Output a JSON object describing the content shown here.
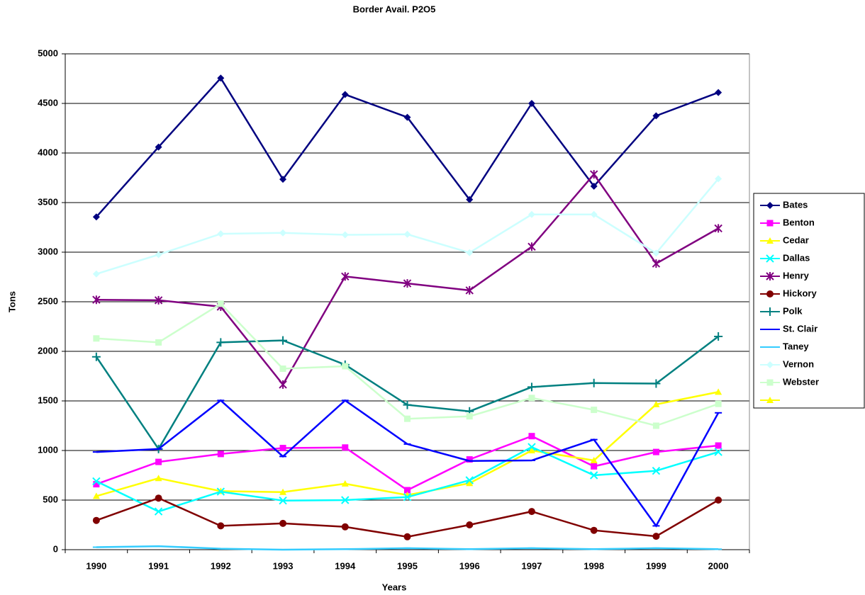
{
  "chart_data": {
    "type": "line",
    "title": "Border Avail. P2O5",
    "x_label": "Years",
    "y_label": "Tons",
    "categories": [
      "1990",
      "1991",
      "1992",
      "1993",
      "1994",
      "1995",
      "1996",
      "1997",
      "1998",
      "1999",
      "2000"
    ],
    "ylim": [
      0,
      5000
    ],
    "yticks": [
      0,
      500,
      1000,
      1500,
      2000,
      2500,
      3000,
      3500,
      4000,
      4500,
      5000
    ],
    "grid": true,
    "legend": "right",
    "series": [
      {
        "name": "Bates",
        "color": "#000080",
        "marker": "diamond",
        "values": [
          3355,
          4060,
          4755,
          3735,
          4590,
          4360,
          3530,
          4500,
          3665,
          4375,
          4610
        ]
      },
      {
        "name": "Benton",
        "color": "#ff00ff",
        "marker": "square",
        "values": [
          660,
          885,
          965,
          1025,
          1030,
          600,
          910,
          1145,
          840,
          985,
          1050
        ]
      },
      {
        "name": "Cedar",
        "color": "#ffff00",
        "marker": "triangle",
        "values": [
          540,
          720,
          590,
          580,
          665,
          550,
          670,
          1000,
          900,
          1465,
          1590
        ]
      },
      {
        "name": "Dallas",
        "color": "#00ffff",
        "marker": "x",
        "values": [
          690,
          385,
          585,
          495,
          500,
          530,
          700,
          1035,
          750,
          795,
          985
        ]
      },
      {
        "name": "Henry",
        "color": "#800080",
        "marker": "star",
        "values": [
          2520,
          2515,
          2450,
          1665,
          2755,
          2685,
          2615,
          3055,
          3785,
          2885,
          3240
        ]
      },
      {
        "name": "Hickory",
        "color": "#800000",
        "marker": "circle",
        "values": [
          295,
          520,
          240,
          265,
          230,
          130,
          250,
          385,
          195,
          135,
          500
        ]
      },
      {
        "name": "Polk",
        "color": "#008080",
        "marker": "plus",
        "values": [
          1945,
          1015,
          2090,
          2110,
          1865,
          1460,
          1395,
          1640,
          1680,
          1675,
          2150
        ]
      },
      {
        "name": "St. Clair",
        "color": "#0000ff",
        "marker": "dash",
        "values": [
          985,
          1015,
          1505,
          940,
          1505,
          1065,
          895,
          900,
          1110,
          240,
          1380
        ]
      },
      {
        "name": "Taney",
        "color": "#33ccff",
        "marker": "dash",
        "values": [
          25,
          35,
          10,
          0,
          5,
          15,
          5,
          15,
          5,
          15,
          5
        ]
      },
      {
        "name": "Vernon",
        "color": "#ccffff",
        "marker": "diamond",
        "values": [
          2780,
          2975,
          3185,
          3195,
          3175,
          3180,
          2995,
          3380,
          3380,
          2990,
          3740
        ]
      },
      {
        "name": "Webster",
        "color": "#ccffcc",
        "marker": "square",
        "values": [
          2130,
          2090,
          2480,
          1825,
          1850,
          1320,
          1345,
          1530,
          1410,
          1250,
          1470
        ]
      }
    ]
  }
}
